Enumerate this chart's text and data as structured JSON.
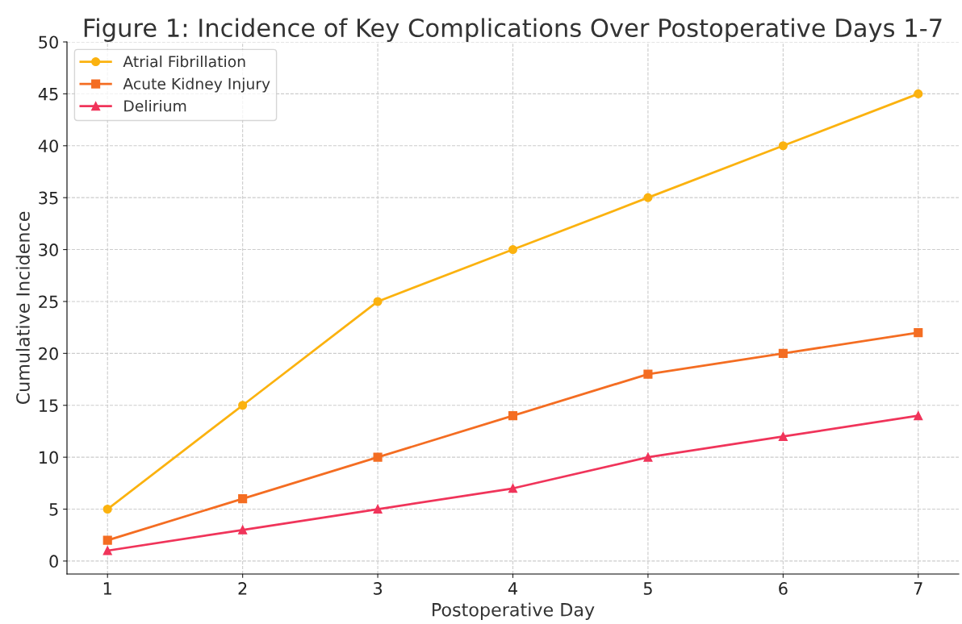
{
  "chart_data": {
    "type": "line",
    "title": "Figure 1: Incidence of Key Complications Over Postoperative Days 1-7",
    "xlabel": "Postoperative Day",
    "ylabel": "Cumulative Incidence",
    "x": [
      1,
      2,
      3,
      4,
      5,
      6,
      7
    ],
    "series": [
      {
        "name": "Atrial Fibrillation",
        "color": "#fbb20f",
        "marker": "circle",
        "values": [
          5,
          15,
          25,
          30,
          35,
          40,
          45
        ]
      },
      {
        "name": "Acute Kidney Injury",
        "color": "#f46d22",
        "marker": "square",
        "values": [
          2,
          6,
          10,
          14,
          18,
          20,
          22
        ]
      },
      {
        "name": "Delirium",
        "color": "#f0345a",
        "marker": "triangle",
        "values": [
          1,
          3,
          5,
          7,
          10,
          12,
          14
        ]
      }
    ],
    "xlim": [
      0.7,
      7.3
    ],
    "xticks": [
      1,
      2,
      3,
      4,
      5,
      6,
      7
    ],
    "ylim": [
      -1.25,
      50
    ],
    "yticks": [
      0,
      5,
      10,
      15,
      20,
      25,
      30,
      35,
      40,
      45,
      50
    ],
    "grid": true,
    "legend": "top left",
    "line_style": "solid"
  }
}
